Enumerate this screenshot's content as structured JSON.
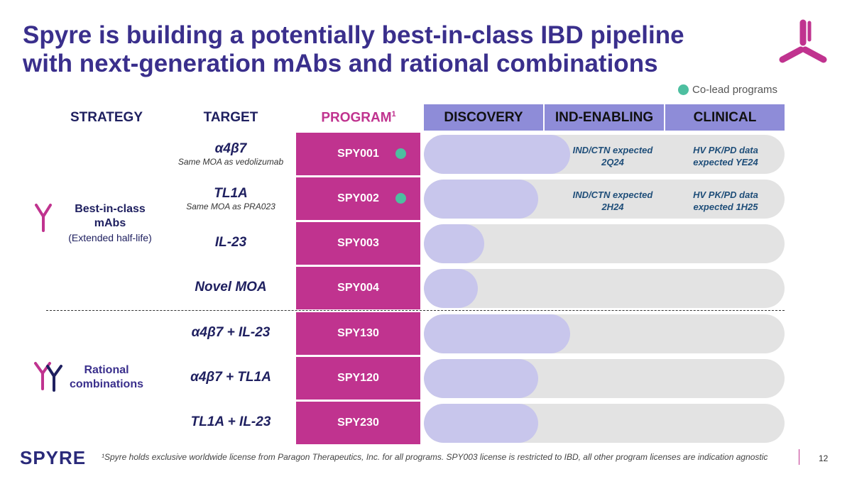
{
  "title_line1": "Spyre is building a potentially best-in-class IBD pipeline",
  "title_line2": "with next-generation mAbs and rational combinations",
  "legend": "Co-lead programs",
  "columns": {
    "strategy": "STRATEGY",
    "target": "TARGET",
    "program": "PROGRAM",
    "program_sup": "1"
  },
  "phases": [
    "DISCOVERY",
    "IND-ENABLING",
    "CLINICAL"
  ],
  "strategies": [
    {
      "label": "Best-in-class mAbs",
      "sub": "(Extended half-life)",
      "icon": "antibody-icon"
    },
    {
      "label": "Rational combinations",
      "icon": "double-antibody-icon"
    }
  ],
  "rows": [
    {
      "target": "α4β7",
      "sub": "Same MOA as vedolizumab",
      "program": "SPY001",
      "co_lead": true,
      "progress": 0.405,
      "note1": "IND/CTN expected 2Q24",
      "note2": "HV PK/PD data expected YE24"
    },
    {
      "target": "TL1A",
      "sub": "Same MOA as PRA023",
      "program": "SPY002",
      "co_lead": true,
      "progress": 0.317,
      "note1": "IND/CTN expected 2H24",
      "note2": "HV PK/PD data expected 1H25"
    },
    {
      "target": "IL-23",
      "program": "SPY003",
      "co_lead": false,
      "progress": 0.167
    },
    {
      "target": "Novel MOA",
      "program": "SPY004",
      "co_lead": false,
      "progress": 0.15
    },
    {
      "target": "α4β7 + IL-23",
      "program": "SPY130",
      "co_lead": false,
      "progress": 0.405
    },
    {
      "target": "α4β7 + TL1A",
      "program": "SPY120",
      "co_lead": false,
      "progress": 0.317
    },
    {
      "target": "TL1A + IL-23",
      "program": "SPY230",
      "co_lead": false,
      "progress": 0.317
    }
  ],
  "footer": {
    "logo": "SPYRE",
    "footnote": "¹Spyre holds exclusive worldwide license from Paragon Therapeutics, Inc. for all programs. SPY003 license is restricted to IBD, all other program licenses are indication agnostic",
    "page": "12"
  },
  "colors": {
    "magenta": "#c0338f",
    "navy": "#1f2060",
    "phase_header": "#8e8cd8",
    "progress_fill": "#c8c6ec",
    "track": "#e3e3e3",
    "co_lead": "#4dbfa0"
  }
}
